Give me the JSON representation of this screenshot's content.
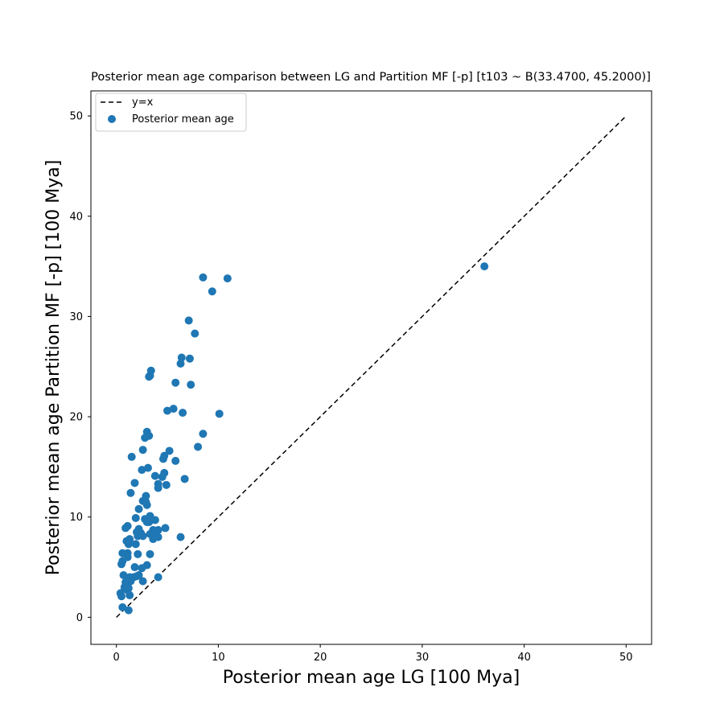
{
  "chart_data": {
    "type": "scatter",
    "title": "Posterior mean age comparison between LG and Partition MF [-p] [t103 ~ B(33.4700, 45.2000)]",
    "xlabel": "Posterior mean age LG [100 Mya]",
    "ylabel": "Posterior mean age Partition MF [-p] [100 Mya]",
    "xlim": [
      -2.5,
      52.5
    ],
    "ylim": [
      -2.7,
      52.5
    ],
    "xticks": [
      0,
      10,
      20,
      30,
      40,
      50
    ],
    "yticks": [
      0,
      10,
      20,
      30,
      40,
      50
    ],
    "grid": false,
    "legend_position": "top-left",
    "colors": {
      "points": "#1f77b4",
      "reference_line": "#000000"
    },
    "series": [
      {
        "name": "y=x",
        "kind": "dashed-line",
        "x": [
          0,
          50
        ],
        "y": [
          0,
          50
        ]
      },
      {
        "name": "Posterior mean age",
        "kind": "scatter",
        "points": [
          [
            36.1,
            35.0
          ],
          [
            8.5,
            33.9
          ],
          [
            10.9,
            33.8
          ],
          [
            9.4,
            32.5
          ],
          [
            7.1,
            29.6
          ],
          [
            7.7,
            28.3
          ],
          [
            6.4,
            25.9
          ],
          [
            7.2,
            25.8
          ],
          [
            6.3,
            25.3
          ],
          [
            3.4,
            24.6
          ],
          [
            3.3,
            24.1
          ],
          [
            3.2,
            24.0
          ],
          [
            5.8,
            23.4
          ],
          [
            7.3,
            23.2
          ],
          [
            5.6,
            20.8
          ],
          [
            5.0,
            20.6
          ],
          [
            6.5,
            20.4
          ],
          [
            10.1,
            20.3
          ],
          [
            3.0,
            18.5
          ],
          [
            3.2,
            18.1
          ],
          [
            2.8,
            17.9
          ],
          [
            8.5,
            18.3
          ],
          [
            8.0,
            17.0
          ],
          [
            2.6,
            16.7
          ],
          [
            5.2,
            16.6
          ],
          [
            1.5,
            16.0
          ],
          [
            4.7,
            16.1
          ],
          [
            4.6,
            15.8
          ],
          [
            5.8,
            15.6
          ],
          [
            3.1,
            14.9
          ],
          [
            2.5,
            14.7
          ],
          [
            4.7,
            14.4
          ],
          [
            3.8,
            14.1
          ],
          [
            4.5,
            14.0
          ],
          [
            6.7,
            13.8
          ],
          [
            1.8,
            13.4
          ],
          [
            4.1,
            13.3
          ],
          [
            4.9,
            13.2
          ],
          [
            4.1,
            12.9
          ],
          [
            1.4,
            12.4
          ],
          [
            2.9,
            12.1
          ],
          [
            2.6,
            11.6
          ],
          [
            2.9,
            11.5
          ],
          [
            3.0,
            11.2
          ],
          [
            2.2,
            10.8
          ],
          [
            3.3,
            10.1
          ],
          [
            1.9,
            9.9
          ],
          [
            2.8,
            9.8
          ],
          [
            3.8,
            9.7
          ],
          [
            3.0,
            9.5
          ],
          [
            3.2,
            9.5
          ],
          [
            1.1,
            9.1
          ],
          [
            0.9,
            8.9
          ],
          [
            4.8,
            8.9
          ],
          [
            2.2,
            8.8
          ],
          [
            3.6,
            8.7
          ],
          [
            4.1,
            8.7
          ],
          [
            2.0,
            8.5
          ],
          [
            2.4,
            8.4
          ],
          [
            3.3,
            8.3
          ],
          [
            2.1,
            8.1
          ],
          [
            3.8,
            8.0
          ],
          [
            4.1,
            8.0
          ],
          [
            6.3,
            8.0
          ],
          [
            1.3,
            7.8
          ],
          [
            2.6,
            8.1
          ],
          [
            3.6,
            7.8
          ],
          [
            1.0,
            7.6
          ],
          [
            1.9,
            7.3
          ],
          [
            1.2,
            7.3
          ],
          [
            0.6,
            6.4
          ],
          [
            1.1,
            6.4
          ],
          [
            2.1,
            6.3
          ],
          [
            3.3,
            6.3
          ],
          [
            1.1,
            6.0
          ],
          [
            0.6,
            5.6
          ],
          [
            0.5,
            5.3
          ],
          [
            1.8,
            5.0
          ],
          [
            3.0,
            5.2
          ],
          [
            2.5,
            4.9
          ],
          [
            0.7,
            4.2
          ],
          [
            1.3,
            4.0
          ],
          [
            2.0,
            4.1
          ],
          [
            1.7,
            4.0
          ],
          [
            2.2,
            4.2
          ],
          [
            4.1,
            4.0
          ],
          [
            1.1,
            3.7
          ],
          [
            1.4,
            3.6
          ],
          [
            0.9,
            3.5
          ],
          [
            2.6,
            3.6
          ],
          [
            0.8,
            3.0
          ],
          [
            1.2,
            2.9
          ],
          [
            1.1,
            2.7
          ],
          [
            0.4,
            2.4
          ],
          [
            0.5,
            2.1
          ],
          [
            1.3,
            2.2
          ],
          [
            0.6,
            1.0
          ],
          [
            1.2,
            0.7
          ]
        ]
      }
    ]
  }
}
